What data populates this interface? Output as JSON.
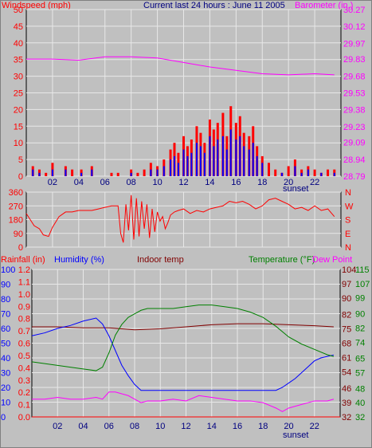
{
  "header": {
    "left_label": "Windspeed (mph)",
    "title": "Current last 24 hours : June 11 2005",
    "right_label": "Barometer (in.)"
  },
  "middle": {
    "right_labels": [
      "N",
      "W",
      "S",
      "E",
      "N"
    ]
  },
  "bottom_header": {
    "rainfall": "Rainfall (in)",
    "humidity": "Humidity (%)",
    "indoor": "Indoor temp",
    "temperature": "Temperature (°F)",
    "dewpoint": "Dew Point"
  },
  "x_ticks": [
    "02",
    "04",
    "06",
    "08",
    "10",
    "12",
    "14",
    "16",
    "18",
    "20",
    "22"
  ],
  "sunset_label": "sunset",
  "colors": {
    "background": "#c0c0c0",
    "grid": "#e8e8e8",
    "windspeed": "#ff0000",
    "gust": "#0000ff",
    "barometer": "#ff00ff",
    "direction": "#ff0000",
    "humidity": "#0000ff",
    "temperature": "#008000",
    "indoor": "#800000",
    "dewpoint": "#ff00ff",
    "rainfall": "#ff0000",
    "title": "#000080"
  },
  "chart_data": [
    {
      "type": "line",
      "yaxis_left": {
        "ticks": [
          0,
          5,
          10,
          15,
          20,
          25,
          30,
          35,
          40,
          45,
          50
        ],
        "ylim": [
          0,
          50
        ]
      },
      "yaxis_right": {
        "ticks": [
          28.79,
          28.94,
          29.09,
          29.23,
          29.38,
          29.53,
          29.68,
          29.83,
          29.97,
          30.12,
          30.27
        ],
        "ylim": [
          28.79,
          30.27
        ]
      },
      "xlim": [
        0,
        24
      ],
      "series": [
        {
          "name": "Windspeed (mph)",
          "axis": "left",
          "style": "bars",
          "x": [
            0.5,
            1.0,
            1.5,
            2.0,
            3.0,
            3.5,
            4.2,
            5.0,
            6.5,
            7.0,
            8.0,
            8.5,
            9.0,
            9.5,
            10.0,
            10.5,
            11.0,
            11.3,
            11.6,
            12.0,
            12.3,
            12.6,
            13.0,
            13.3,
            13.6,
            14.0,
            14.3,
            14.6,
            15.0,
            15.3,
            15.6,
            16.0,
            16.3,
            16.6,
            17.0,
            17.3,
            17.6,
            18.0,
            18.5,
            19.0,
            19.5,
            20.0,
            20.5,
            21.0,
            21.5,
            22.0,
            22.5,
            23.0,
            23.5
          ],
          "values": [
            3,
            2,
            1,
            4,
            3,
            2,
            2,
            3,
            1,
            1,
            2,
            1,
            2,
            4,
            3,
            5,
            8,
            10,
            7,
            12,
            9,
            11,
            15,
            13,
            10,
            17,
            14,
            16,
            19,
            12,
            21,
            16,
            18,
            13,
            12,
            15,
            9,
            6,
            4,
            2,
            1,
            3,
            5,
            2,
            3,
            2,
            1,
            2,
            2
          ]
        },
        {
          "name": "Gust",
          "axis": "left",
          "style": "bars",
          "x": [
            0.5,
            1.0,
            2.0,
            3.0,
            4.2,
            5.0,
            8.0,
            9.5,
            10.0,
            10.5,
            11.0,
            11.3,
            11.6,
            12.0,
            12.3,
            12.6,
            13.0,
            13.3,
            13.6,
            14.0,
            14.3,
            14.6,
            15.0,
            15.3,
            15.6,
            16.0,
            16.3,
            16.6,
            17.0,
            17.3,
            17.6,
            18.0,
            19.5,
            20.5,
            21.0,
            21.5,
            22.5,
            23.5
          ],
          "values": [
            2,
            1,
            2,
            2,
            1,
            2,
            1,
            2,
            2,
            3,
            5,
            6,
            4,
            8,
            6,
            7,
            10,
            9,
            7,
            12,
            9,
            11,
            12,
            8,
            14,
            11,
            12,
            9,
            8,
            10,
            6,
            4,
            1,
            3,
            1,
            2,
            1,
            1
          ]
        },
        {
          "name": "Barometer (in.)",
          "axis": "right",
          "x": [
            0,
            2,
            4,
            6,
            8,
            10,
            12,
            14,
            16,
            18,
            20,
            22,
            23.5
          ],
          "values": [
            29.83,
            29.83,
            29.82,
            29.85,
            29.85,
            29.84,
            29.8,
            29.76,
            29.73,
            29.7,
            29.69,
            29.7,
            29.69
          ]
        }
      ]
    },
    {
      "type": "line",
      "yaxis_left": {
        "ticks": [
          0,
          90,
          180,
          270,
          360
        ],
        "ylim": [
          0,
          360
        ]
      },
      "xlim": [
        0,
        24
      ],
      "series": [
        {
          "name": "Wind direction",
          "axis": "left",
          "x": [
            0,
            0.3,
            0.6,
            1.0,
            1.3,
            1.7,
            2.0,
            2.5,
            3.0,
            3.5,
            4.0,
            4.5,
            5.0,
            5.5,
            6.0,
            6.5,
            7.0,
            7.2,
            7.4,
            7.6,
            7.8,
            8.0,
            8.2,
            8.4,
            8.6,
            8.8,
            9.0,
            9.2,
            9.4,
            9.6,
            9.8,
            10.0,
            10.2,
            10.4,
            10.6,
            10.8,
            11.0,
            11.3,
            11.6,
            12.0,
            12.5,
            13.0,
            13.5,
            14.0,
            14.5,
            15.0,
            15.5,
            16.0,
            16.5,
            17.0,
            17.5,
            18.0,
            18.5,
            19.0,
            19.5,
            20.0,
            20.5,
            21.0,
            21.5,
            22.0,
            22.5,
            23.0,
            23.5
          ],
          "values": [
            220,
            180,
            140,
            120,
            80,
            70,
            130,
            200,
            230,
            230,
            240,
            240,
            240,
            250,
            260,
            270,
            270,
            90,
            30,
            280,
            110,
            340,
            50,
            320,
            70,
            300,
            120,
            280,
            60,
            250,
            100,
            230,
            170,
            200,
            120,
            160,
            210,
            230,
            240,
            250,
            220,
            240,
            230,
            250,
            260,
            270,
            300,
            290,
            300,
            280,
            250,
            270,
            310,
            320,
            300,
            280,
            250,
            260,
            240,
            270,
            240,
            250,
            200
          ]
        }
      ]
    },
    {
      "type": "line",
      "yaxis_rain": {
        "ticks": [
          0.0,
          0.1,
          0.2,
          0.3,
          0.4,
          0.5,
          0.6,
          0.7,
          0.8,
          0.9,
          1.0,
          1.1,
          1.2
        ],
        "ylim": [
          0,
          1.2
        ]
      },
      "yaxis_humidity": {
        "ticks": [
          0,
          10,
          20,
          30,
          40,
          50,
          60,
          70,
          80,
          90,
          100
        ],
        "ylim": [
          0,
          100
        ]
      },
      "yaxis_indoor": {
        "ticks": [
          32,
          39,
          46,
          54,
          61,
          68,
          75,
          82,
          90,
          97,
          104
        ],
        "ylim": [
          32,
          104
        ]
      },
      "yaxis_temp": {
        "ticks": [
          32,
          40,
          48,
          57,
          65,
          74,
          82,
          90,
          99,
          107,
          115
        ],
        "ylim": [
          32,
          115
        ]
      },
      "xlim": [
        0,
        24
      ],
      "series": [
        {
          "name": "Humidity (%)",
          "axis": "humidity",
          "x": [
            0,
            1,
            2,
            3,
            4,
            5,
            5.5,
            6,
            6.5,
            7,
            7.5,
            8,
            8.5,
            9,
            10,
            12,
            14,
            16,
            18,
            19,
            19.5,
            20,
            20.5,
            21,
            21.5,
            22,
            22.5,
            23,
            23.5
          ],
          "values": [
            55,
            57,
            60,
            62,
            65,
            67,
            63,
            55,
            45,
            35,
            28,
            22,
            18,
            18,
            18,
            18,
            18,
            18,
            18,
            18,
            20,
            23,
            26,
            30,
            34,
            38,
            40,
            41,
            42
          ]
        },
        {
          "name": "Temperature (°F)",
          "axis": "temp",
          "x": [
            0,
            1,
            2,
            3,
            4,
            5,
            5.5,
            6,
            6.5,
            7,
            7.5,
            8,
            8.5,
            9,
            10,
            11,
            12,
            13,
            14,
            15,
            16,
            17,
            18,
            19,
            20,
            21,
            22,
            23,
            23.5
          ],
          "values": [
            63,
            62,
            61,
            60,
            59,
            58,
            60,
            68,
            78,
            84,
            88,
            90,
            92,
            93,
            93,
            93,
            94,
            95,
            95,
            94,
            93,
            91,
            88,
            83,
            77,
            73,
            70,
            67,
            66
          ]
        },
        {
          "name": "Indoor temp",
          "axis": "indoor",
          "x": [
            0,
            2,
            4,
            6,
            8,
            10,
            12,
            14,
            16,
            18,
            20,
            22,
            23.5
          ],
          "values": [
            76,
            76,
            75.5,
            75.5,
            74.5,
            75,
            76,
            77,
            77.5,
            77.5,
            77,
            76.5,
            76
          ]
        },
        {
          "name": "Dew Point",
          "axis": "temp",
          "x": [
            0,
            1,
            2,
            3,
            4,
            5,
            5.5,
            6,
            6.5,
            7,
            7.5,
            8,
            8.5,
            9,
            10,
            11,
            12,
            13,
            14,
            15,
            16,
            17,
            18,
            19,
            19.5,
            20,
            21,
            22,
            23,
            23.5
          ],
          "values": [
            42,
            42,
            43,
            42,
            42,
            43,
            42,
            46,
            46,
            45,
            44,
            42,
            40,
            41,
            41,
            42,
            41,
            44,
            43,
            42,
            41,
            41,
            40,
            37,
            35,
            37,
            39,
            41,
            41,
            42
          ]
        },
        {
          "name": "Rainfall (in)",
          "axis": "rain",
          "x": [
            0,
            24
          ],
          "values": [
            0,
            0
          ]
        }
      ]
    }
  ]
}
